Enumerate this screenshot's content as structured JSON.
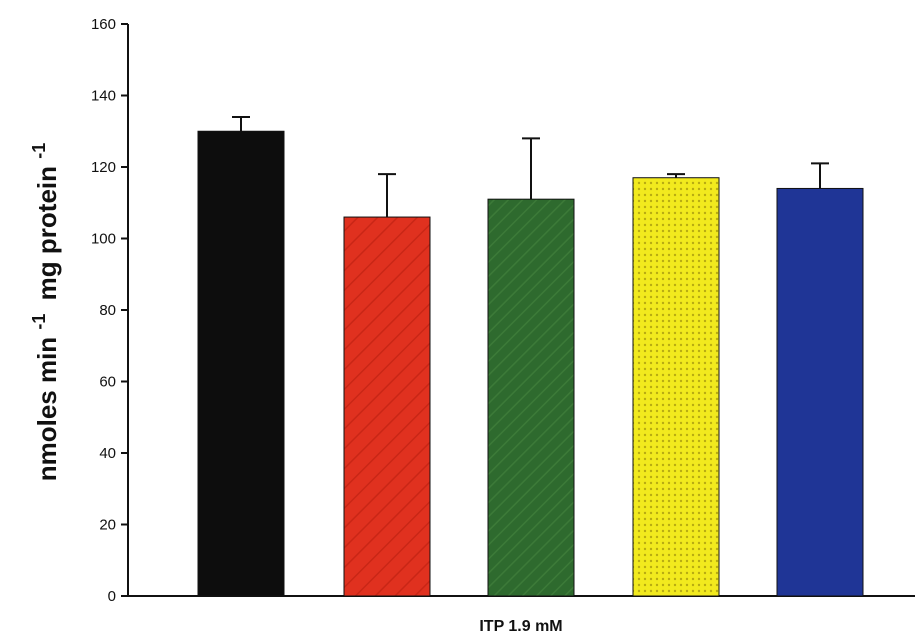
{
  "chart_data": {
    "type": "bar",
    "title": "",
    "xlabel": "ITP 1.9 mM",
    "ylabel": {
      "base1": "nmoles min",
      "sup1": "-1",
      "base2": "mg protein",
      "sup2": "-1"
    },
    "ylim": [
      0,
      160
    ],
    "yticks": [
      0,
      20,
      40,
      60,
      80,
      100,
      120,
      140,
      160
    ],
    "grid": false,
    "legend": "none",
    "series": [
      {
        "values": [
          130,
          106,
          111,
          117,
          114
        ],
        "errors": [
          4,
          12,
          17,
          1,
          7
        ],
        "colors": [
          "#0d0d0d",
          "#e0311f",
          "#2e6a2e",
          "#f2ea1e",
          "#1f3596"
        ]
      }
    ]
  }
}
